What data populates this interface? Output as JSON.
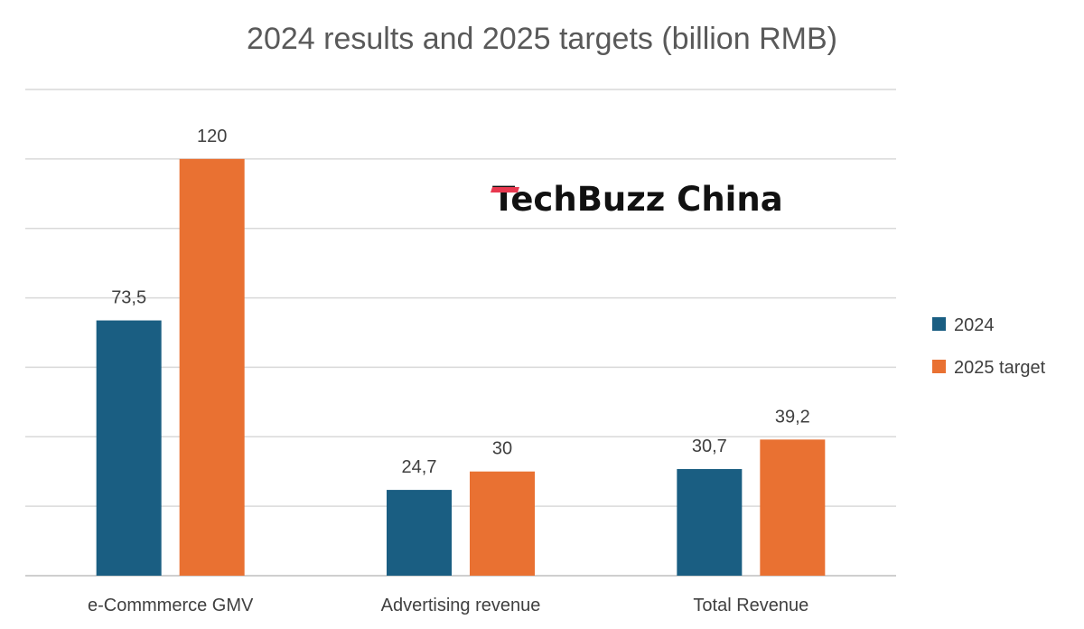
{
  "chart_data": {
    "type": "bar",
    "title": "2024 results and 2025 targets (billion RMB)",
    "categories": [
      "e-Commmerce GMV",
      "Advertising revenue",
      "Total Revenue"
    ],
    "series": [
      {
        "name": "2024",
        "color": "#1a5e82",
        "values": [
          73.5,
          24.7,
          30.7
        ],
        "labels": [
          "73,5",
          "24,7",
          "30,7"
        ]
      },
      {
        "name": "2025 target",
        "color": "#e97132",
        "values": [
          120,
          30,
          39.2
        ],
        "labels": [
          "120",
          "30",
          "39,2"
        ]
      }
    ],
    "ylim": [
      0,
      140
    ],
    "ystep": 20,
    "grid": true,
    "legend_position": "right",
    "xlabel": "",
    "ylabel": ""
  },
  "watermark": {
    "text": "TechBuzz China",
    "accent_color": "#e8384f"
  }
}
